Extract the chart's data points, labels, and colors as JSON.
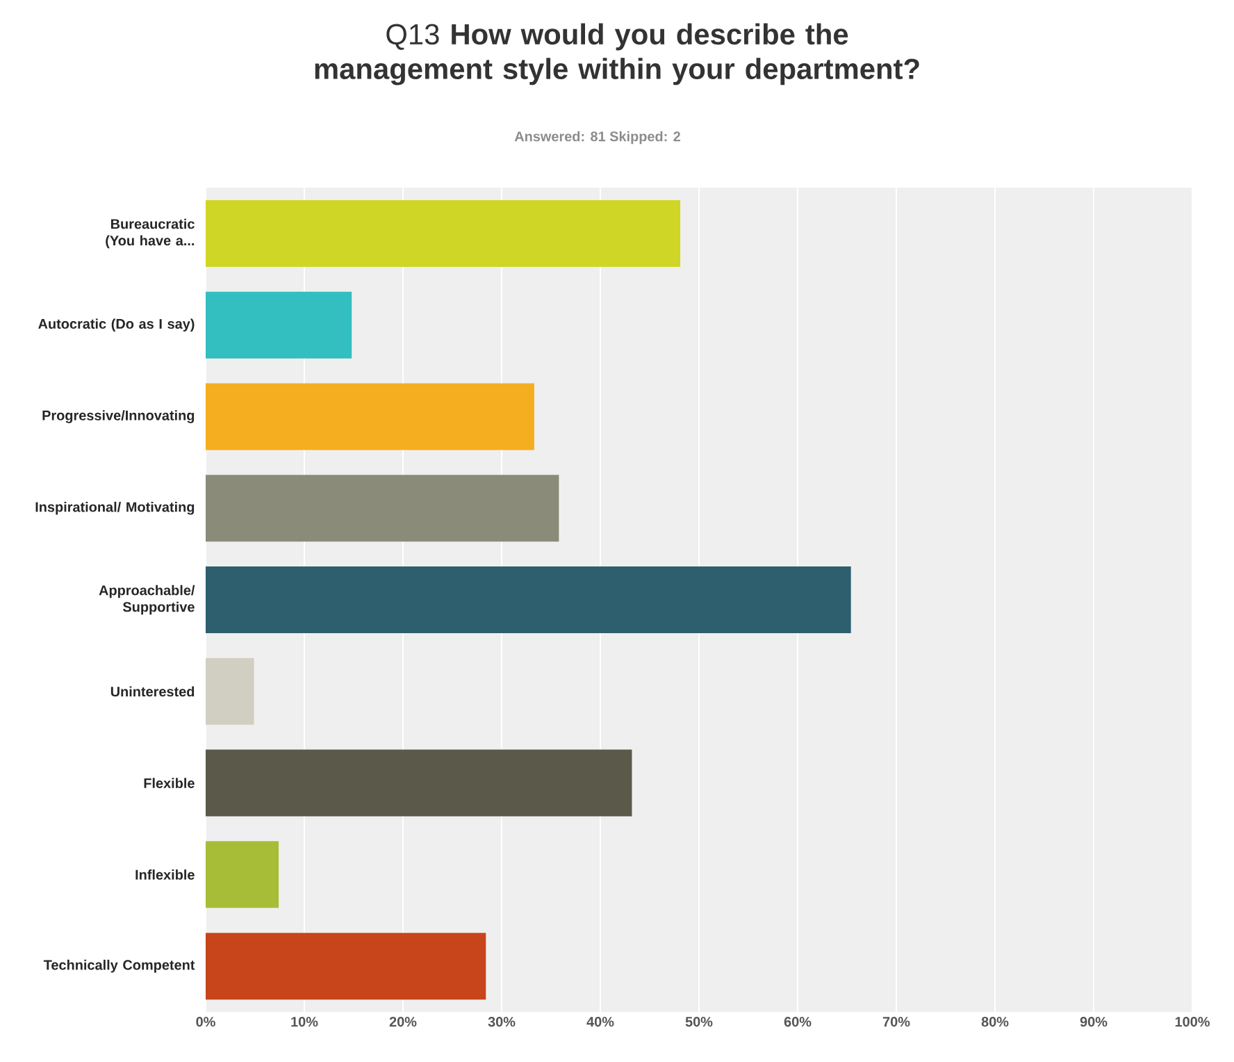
{
  "chart_data": {
    "type": "bar",
    "orientation": "horizontal",
    "title": "Q13 **How would you describe the management style within your department?**",
    "subtitle": "Answered: 81    Skipped: 2",
    "categories": [
      "Bureaucratic (You have a...",
      "Autocratic (Do as I say)",
      "Progressive/Innovating",
      "Inspirational/ Motivating",
      "Approachable/ Supportive",
      "Uninterested",
      "Flexible",
      "Inflexible",
      "Technically Competent"
    ],
    "values": [
      48.1,
      14.8,
      33.3,
      35.8,
      65.4,
      4.9,
      43.2,
      7.4,
      28.4
    ],
    "colors": [
      "#d0d626",
      "#33bec0",
      "#f5ae1f",
      "#8a8b79",
      "#2d5f6e",
      "#d1cfc1",
      "#5b5949",
      "#a7bd37",
      "#c8441b"
    ],
    "xlim": [
      0,
      100
    ],
    "xticks": [
      {
        "value": 0,
        "label": "0%"
      },
      {
        "value": 10,
        "label": "10%"
      },
      {
        "value": 20,
        "label": "20%"
      },
      {
        "value": 30,
        "label": "30%"
      },
      {
        "value": 40,
        "label": "40%"
      },
      {
        "value": 50,
        "label": "50%"
      },
      {
        "value": 60,
        "label": "60%"
      },
      {
        "value": 70,
        "label": "70%"
      },
      {
        "value": 80,
        "label": "80%"
      },
      {
        "value": 90,
        "label": "90%"
      },
      {
        "value": 100,
        "label": "100%"
      }
    ],
    "grid": "x"
  }
}
